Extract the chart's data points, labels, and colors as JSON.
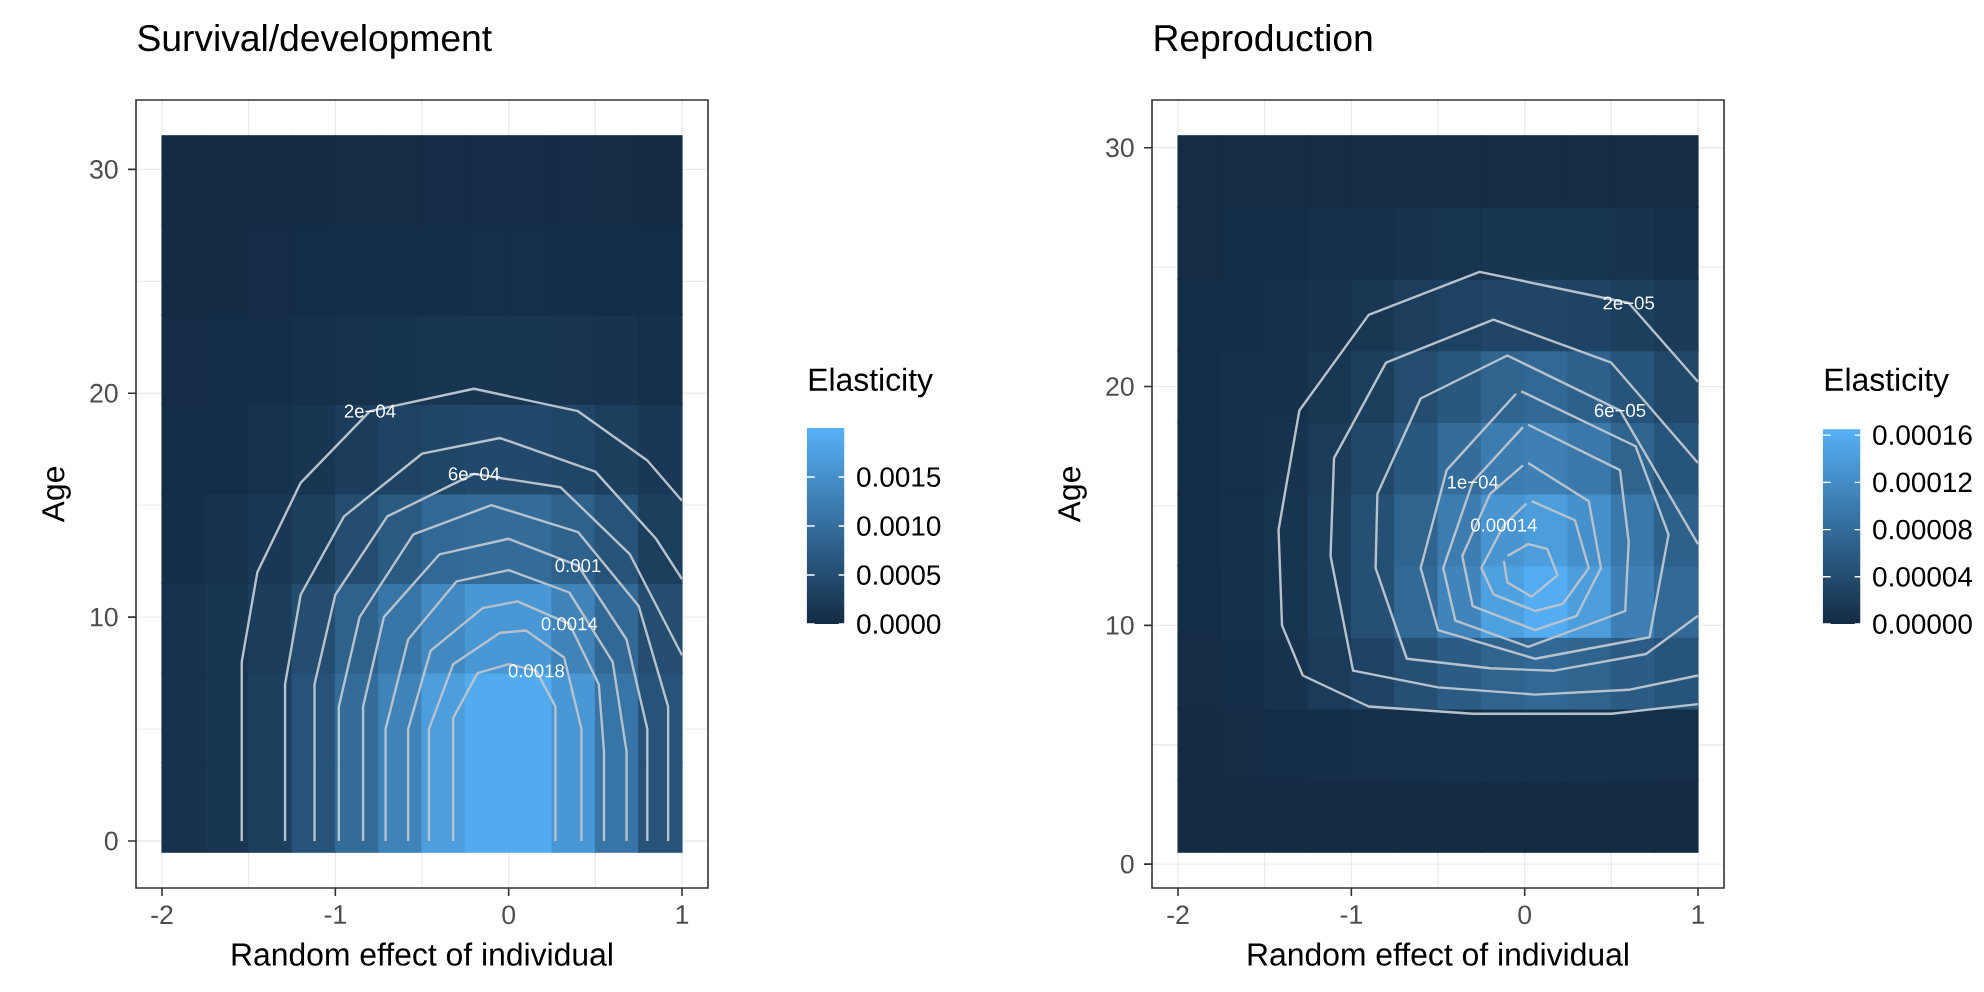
{
  "chart_data": [
    {
      "type": "heatmap",
      "title": "Survival/development",
      "xlabel": "Random effect of individual",
      "ylabel": "Age",
      "clabel": "Elasticity",
      "xlim": [
        -2.15,
        1.15
      ],
      "ylim": [
        -2.1,
        33.1
      ],
      "xticks": [
        -2,
        -1,
        0,
        1
      ],
      "yticks": [
        0,
        10,
        20,
        30
      ],
      "grid": true,
      "clim": [
        0,
        0.002
      ],
      "cticks": [
        {
          "value": 0,
          "label": "0.0000"
        },
        {
          "value": 0.0005,
          "label": "0.0005"
        },
        {
          "value": 0.001,
          "label": "0.0010"
        },
        {
          "value": 0.0015,
          "label": "0.0015"
        }
      ],
      "x": [
        -1.875,
        -1.625,
        -1.375,
        -1.125,
        -0.875,
        -0.625,
        -0.375,
        -0.125,
        0.125,
        0.375,
        0.625,
        0.875
      ],
      "y": [
        29.5,
        25.5,
        21.5,
        17.5,
        13.5,
        9.5,
        5.5,
        1.5
      ],
      "cells": [
        [
          1e-05,
          1e-05,
          1e-05,
          1e-05,
          1.5e-05,
          1.5e-05,
          2e-05,
          2e-05,
          2e-05,
          2e-05,
          1.5e-05,
          1e-05
        ],
        [
          1e-05,
          1e-05,
          2e-05,
          3e-05,
          4e-05,
          5e-05,
          5e-05,
          6e-05,
          6e-05,
          5e-05,
          4e-05,
          3e-05
        ],
        [
          2e-05,
          3e-05,
          5e-05,
          7e-05,
          0.0001,
          0.00013,
          0.00015,
          0.00016,
          0.00016,
          0.00014,
          0.00012,
          9e-05
        ],
        [
          3e-05,
          5e-05,
          0.0001,
          0.00015,
          0.00025,
          0.00035,
          0.0004,
          0.00045,
          0.00045,
          0.0004,
          0.0003,
          0.0002
        ],
        [
          5e-05,
          0.0001,
          0.0002,
          0.0003,
          0.0005,
          0.0007,
          0.0009,
          0.00095,
          0.00095,
          0.0008,
          0.0006,
          0.0003
        ],
        [
          0.0001,
          0.00015,
          0.00025,
          0.0005,
          0.0008,
          0.0011,
          0.0014,
          0.0016,
          0.0016,
          0.0013,
          0.0009,
          0.0005
        ],
        [
          0.0001,
          0.00015,
          0.0003,
          0.0006,
          0.00095,
          0.0013,
          0.0017,
          0.0019,
          0.0019,
          0.0016,
          0.0011,
          0.0006
        ],
        [
          0.0001,
          0.00015,
          0.0003,
          0.0006,
          0.00095,
          0.0013,
          0.0017,
          0.0019,
          0.0019,
          0.0016,
          0.0011,
          0.0006
        ]
      ],
      "series": [
        {
          "type": "line",
          "color": "#b8c2cc",
          "x": [
            -1.54,
            -1.54,
            -1.45,
            -1.2,
            -0.8,
            -0.2,
            0.4,
            0.8,
            1.0
          ],
          "values": [
            0,
            8,
            12,
            16,
            19.2,
            20.2,
            19.2,
            17,
            15.2
          ]
        },
        {
          "type": "line",
          "color": "#b8c2cc",
          "x": [
            -1.29,
            -1.29,
            -1.2,
            -0.95,
            -0.5,
            -0.05,
            0.5,
            0.85,
            1.0
          ],
          "values": [
            0,
            7,
            11,
            14.5,
            17.3,
            18.0,
            16.5,
            13.5,
            11.7
          ]
        },
        {
          "type": "line",
          "color": "#b8c2cc",
          "x": [
            -1.12,
            -1.12,
            -1.0,
            -0.7,
            -0.2,
            0.3,
            0.7,
            1.0
          ],
          "values": [
            0,
            7,
            11,
            14.5,
            16.4,
            15.8,
            12.8,
            8.3
          ]
        },
        {
          "type": "line",
          "color": "#b8c2cc",
          "x": [
            -0.98,
            -0.98,
            -0.86,
            -0.55,
            -0.1,
            0.4,
            0.75,
            0.92,
            0.92
          ],
          "values": [
            0,
            6,
            10,
            13.7,
            15.0,
            13.8,
            10.5,
            6,
            0
          ]
        },
        {
          "type": "line",
          "color": "#b8c2cc",
          "x": [
            -0.84,
            -0.84,
            -0.72,
            -0.4,
            0,
            0.4,
            0.68,
            0.8,
            0.8
          ],
          "values": [
            0,
            6,
            10,
            12.8,
            13.5,
            12.3,
            9,
            5,
            0
          ]
        },
        {
          "type": "line",
          "color": "#b8c2cc",
          "x": [
            -0.71,
            -0.71,
            -0.58,
            -0.3,
            0,
            0.35,
            0.6,
            0.68,
            0.68
          ],
          "values": [
            0,
            5,
            9,
            11.6,
            12.1,
            11.1,
            8,
            4,
            0
          ]
        },
        {
          "type": "line",
          "color": "#b8c2cc",
          "x": [
            -0.58,
            -0.58,
            -0.45,
            -0.15,
            0.05,
            0.35,
            0.52,
            0.55,
            0.55
          ],
          "values": [
            0,
            5,
            8.5,
            10.4,
            10.7,
            9.7,
            7,
            4,
            0
          ]
        },
        {
          "type": "line",
          "color": "#b8c2cc",
          "x": [
            -0.46,
            -0.46,
            -0.32,
            -0.05,
            0.1,
            0.32,
            0.42,
            0.42
          ],
          "values": [
            0,
            5,
            7.9,
            9.3,
            9.4,
            8.2,
            5,
            0
          ]
        },
        {
          "type": "line",
          "color": "#b8c2cc",
          "x": [
            -0.32,
            -0.32,
            -0.18,
            0.0,
            0.16,
            0.27,
            0.27
          ],
          "values": [
            0,
            5.5,
            7.5,
            7.9,
            7.6,
            6,
            0
          ]
        }
      ],
      "annotations": [
        {
          "text": "2e−04",
          "x": -0.8,
          "y": 19.2
        },
        {
          "text": "6e−04",
          "x": -0.2,
          "y": 16.4
        },
        {
          "text": "0.001",
          "x": 0.4,
          "y": 12.3
        },
        {
          "text": "0.0014",
          "x": 0.35,
          "y": 9.7
        },
        {
          "text": "0.0018",
          "x": 0.16,
          "y": 7.6
        }
      ]
    },
    {
      "type": "heatmap",
      "title": "Reproduction",
      "xlabel": "Random effect of individual",
      "ylabel": "Age",
      "clabel": "Elasticity",
      "xlim": [
        -2.15,
        1.15
      ],
      "ylim": [
        -1,
        32
      ],
      "xticks": [
        -2,
        -1,
        0,
        1
      ],
      "yticks": [
        0,
        10,
        20,
        30
      ],
      "grid": true,
      "clim": [
        0,
        0.000166
      ],
      "cticks": [
        {
          "value": 0,
          "label": "0.00000"
        },
        {
          "value": 4e-05,
          "label": "0.00004"
        },
        {
          "value": 8e-05,
          "label": "0.00008"
        },
        {
          "value": 0.00012,
          "label": "0.00012"
        },
        {
          "value": 0.00016,
          "label": "0.00016"
        }
      ],
      "x": [
        -1.875,
        -1.625,
        -1.375,
        -1.125,
        -0.875,
        -0.625,
        -0.375,
        -0.125,
        0.125,
        0.375,
        0.625,
        0.875
      ],
      "y": [
        29,
        26,
        23,
        20,
        17,
        14,
        11,
        8,
        5,
        2
      ],
      "cells": [
        [
          2e-06,
          2e-06,
          2e-06,
          2e-06,
          2e-06,
          2e-06,
          2e-06,
          2e-06,
          2e-06,
          2e-06,
          2e-06,
          2e-06
        ],
        [
          2e-06,
          3e-06,
          4e-06,
          6e-06,
          8e-06,
          1e-05,
          1.2e-05,
          1.3e-05,
          1.3e-05,
          1.2e-05,
          1e-05,
          8e-06
        ],
        [
          3e-06,
          4e-06,
          6e-06,
          1e-05,
          1.5e-05,
          2.2e-05,
          2.8e-05,
          3.2e-05,
          3.2e-05,
          3e-05,
          2.5e-05,
          1.8e-05
        ],
        [
          3e-06,
          5e-06,
          8e-06,
          1.5e-05,
          2.5e-05,
          4e-05,
          5.5e-05,
          7e-05,
          7.5e-05,
          6.5e-05,
          5e-05,
          3.5e-05
        ],
        [
          3e-06,
          5e-06,
          1e-05,
          2e-05,
          3.5e-05,
          5.5e-05,
          8e-05,
          0.0001,
          0.000105,
          9.5e-05,
          7e-05,
          5e-05
        ],
        [
          3e-06,
          5e-06,
          1.2e-05,
          2.5e-05,
          4.5e-05,
          7e-05,
          0.0001,
          0.00013,
          0.00014,
          0.000125,
          9.5e-05,
          6.5e-05
        ],
        [
          3e-06,
          6e-06,
          1.2e-05,
          2.5e-05,
          4.5e-05,
          7.5e-05,
          0.00011,
          0.000145,
          0.00016,
          0.00014,
          0.000105,
          7.5e-05
        ],
        [
          2e-06,
          4e-06,
          1e-05,
          2e-05,
          3e-05,
          4.5e-05,
          6e-05,
          7e-05,
          7.5e-05,
          7e-05,
          6e-05,
          5e-05
        ],
        [
          1e-06,
          2e-06,
          3e-06,
          4e-06,
          5e-06,
          6e-06,
          7e-06,
          8e-06,
          8e-06,
          7e-06,
          6e-06,
          5e-06
        ],
        [
          1e-06,
          1e-06,
          1e-06,
          1e-06,
          1e-06,
          1e-06,
          1e-06,
          1e-06,
          1e-06,
          1e-06,
          1e-06,
          1e-06
        ]
      ],
      "series": [
        {
          "type": "line",
          "color": "#b8c2cc",
          "x": [
            1.0,
            0.6,
            -0.26,
            -0.9,
            -1.3,
            -1.42,
            -1.4,
            -1.28,
            -0.9,
            -0.3,
            0.5,
            1.0
          ],
          "values": [
            20.2,
            23.5,
            24.8,
            23,
            19,
            14,
            10,
            7.9,
            6.6,
            6.3,
            6.3,
            6.7
          ]
        },
        {
          "type": "line",
          "color": "#b8c2cc",
          "x": [
            1.0,
            0.5,
            -0.18,
            -0.8,
            -1.1,
            -1.12,
            -0.99,
            -0.5,
            0.06,
            0.6,
            1.0
          ],
          "values": [
            16.8,
            21,
            22.8,
            21,
            17,
            12.9,
            8.1,
            7.4,
            7.1,
            7.3,
            7.9
          ]
        },
        {
          "type": "line",
          "color": "#b8c2cc",
          "x": [
            1.0,
            0.55,
            -0.1,
            -0.6,
            -0.85,
            -0.86,
            -0.68,
            -0.2,
            0.17,
            0.7,
            1.0
          ],
          "values": [
            13.4,
            19,
            21.3,
            19.5,
            15.5,
            12.4,
            8.6,
            8.2,
            8.1,
            8.8,
            10.4
          ]
        },
        {
          "type": "line",
          "color": "#b8c2cc",
          "x": [
            -0.02,
            0.64,
            0.83,
            0.72,
            0.06,
            -0.5,
            -0.6,
            -0.45,
            -0.05
          ],
          "values": [
            19.8,
            17.5,
            13.8,
            9.5,
            8.6,
            9.8,
            12.4,
            16.5,
            19.7
          ]
        },
        {
          "type": "line",
          "color": "#b8c2cc",
          "x": [
            0.02,
            0.55,
            0.6,
            0.58,
            0.02,
            -0.4,
            -0.47,
            -0.3,
            -0.01
          ],
          "values": [
            18.4,
            16.5,
            13.5,
            10.6,
            9.1,
            10.2,
            12.4,
            16,
            18.3
          ]
        },
        {
          "type": "line",
          "color": "#b8c2cc",
          "x": [
            0.02,
            0.37,
            0.44,
            0.3,
            0.06,
            -0.3,
            -0.36,
            -0.2,
            -0.01
          ],
          "values": [
            16.8,
            15.2,
            12.4,
            10.4,
            9.8,
            10.8,
            12.9,
            15.5,
            16.7
          ]
        },
        {
          "type": "line",
          "color": "#b8c2cc",
          "x": [
            0.04,
            0.29,
            0.37,
            0.22,
            0.06,
            -0.18,
            -0.25,
            -0.12,
            0.01
          ],
          "values": [
            15.2,
            14.4,
            12.4,
            10.9,
            10.6,
            11.3,
            12.4,
            14.2,
            15.1
          ]
        },
        {
          "type": "line",
          "color": "#b8c2cc",
          "x": [
            -0.1,
            0.02,
            0.13,
            0.19,
            0.04,
            -0.1,
            -0.12
          ],
          "values": [
            12.9,
            13.4,
            13.2,
            12.1,
            11.2,
            11.8,
            12.7
          ]
        }
      ],
      "annotations": [
        {
          "text": "2e−05",
          "x": 0.6,
          "y": 23.5
        },
        {
          "text": "6e−05",
          "x": 0.55,
          "y": 19
        },
        {
          "text": "1e−04",
          "x": -0.3,
          "y": 16
        },
        {
          "text": "0.00014",
          "x": -0.12,
          "y": 14.2
        }
      ]
    }
  ]
}
